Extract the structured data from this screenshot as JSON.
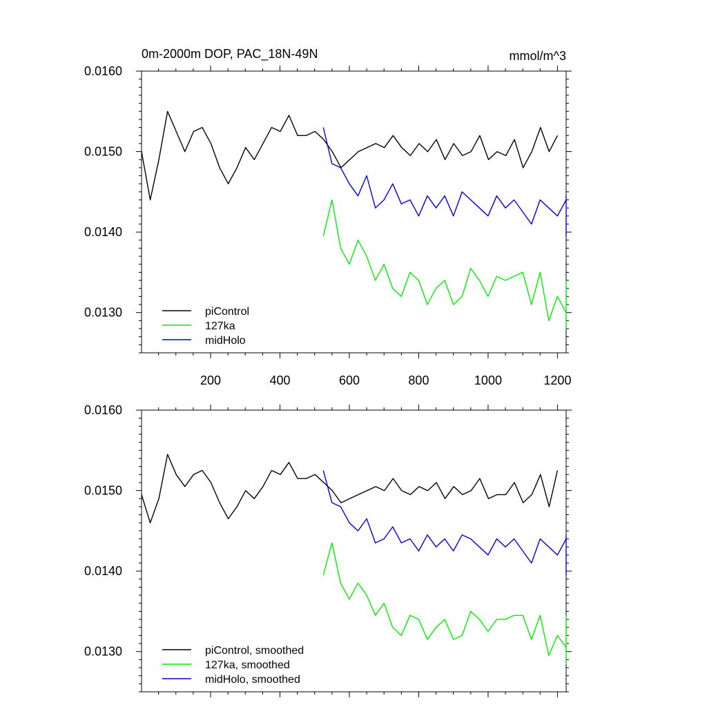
{
  "chart_data": [
    {
      "type": "line",
      "title": "0m-2000m DOP, PAC_18N-49N",
      "units": "mmol/m^3",
      "xlim": [
        1,
        1225
      ],
      "ylim": [
        0.0125,
        0.016
      ],
      "xticks": [
        200,
        400,
        600,
        800,
        1000,
        1200
      ],
      "yticks": [
        "0.0160",
        "0.0150",
        "0.0140",
        "0.0130"
      ],
      "legend": [
        "piControl",
        "127ka",
        "midHolo"
      ],
      "series": [
        {
          "name": "piControl",
          "color": "#000000",
          "x_start": 1,
          "x_end": 1200,
          "step": 25,
          "values": [
            0.015,
            0.0144,
            0.0149,
            0.0155,
            0.01525,
            0.015,
            0.01525,
            0.0153,
            0.0151,
            0.0148,
            0.0146,
            0.0148,
            0.01505,
            0.0149,
            0.0151,
            0.0153,
            0.01525,
            0.01545,
            0.0152,
            0.0152,
            0.01525,
            0.01515,
            0.015,
            0.0148,
            0.0149,
            0.015,
            0.01505,
            0.0151,
            0.01505,
            0.0152,
            0.01505,
            0.01495,
            0.0151,
            0.015,
            0.01515,
            0.0149,
            0.0151,
            0.01495,
            0.015,
            0.0152,
            0.0149,
            0.015,
            0.01495,
            0.01515,
            0.0148,
            0.015,
            0.0153,
            0.015,
            0.0152
          ]
        },
        {
          "name": "127ka",
          "color": "#00ee00",
          "x_start": 525,
          "x_end": 1225,
          "step": 25,
          "values": [
            0.01395,
            0.0144,
            0.0138,
            0.0136,
            0.0139,
            0.0137,
            0.0134,
            0.0136,
            0.0133,
            0.0132,
            0.0135,
            0.0134,
            0.0131,
            0.0133,
            0.0134,
            0.0131,
            0.0132,
            0.01355,
            0.0134,
            0.0132,
            0.01345,
            0.0134,
            0.01345,
            0.0135,
            0.0131,
            0.0135,
            0.0129,
            0.0132,
            0.013,
            0.0131,
            0.01315,
            0.0133,
            0.0131,
            0.01295,
            0.0128,
            0.0134
          ]
        },
        {
          "name": "midHolo",
          "color": "#0000dd",
          "x_start": 525,
          "x_end": 1225,
          "step": 25,
          "values": [
            0.0153,
            0.01485,
            0.0148,
            0.0146,
            0.01445,
            0.0147,
            0.0143,
            0.0144,
            0.0146,
            0.01435,
            0.0144,
            0.0142,
            0.01445,
            0.0143,
            0.01445,
            0.0142,
            0.0145,
            0.0144,
            0.0143,
            0.0142,
            0.01445,
            0.0143,
            0.0144,
            0.01425,
            0.0141,
            0.0144,
            0.0143,
            0.0142,
            0.0144,
            0.01445,
            0.01425,
            0.0143,
            0.0141,
            0.01395,
            0.0142,
            0.01395
          ]
        }
      ]
    },
    {
      "type": "line",
      "title": "",
      "units": "",
      "xlim": [
        1,
        1225
      ],
      "ylim": [
        0.0125,
        0.016
      ],
      "xticks": [
        200,
        400,
        600,
        800,
        1000,
        1200
      ],
      "yticks": [
        "0.0160",
        "0.0150",
        "0.0140",
        "0.0130"
      ],
      "legend": [
        "piControl, smoothed",
        "127ka, smoothed",
        "midHolo, smoothed"
      ],
      "series": [
        {
          "name": "piControl, smoothed",
          "color": "#000000",
          "x_start": 1,
          "x_end": 1200,
          "step": 25,
          "values": [
            0.01495,
            0.0146,
            0.0149,
            0.01545,
            0.0152,
            0.01505,
            0.0152,
            0.01525,
            0.0151,
            0.01485,
            0.01465,
            0.0148,
            0.015,
            0.0149,
            0.01505,
            0.01525,
            0.0152,
            0.01535,
            0.01515,
            0.01515,
            0.0152,
            0.0151,
            0.015,
            0.01485,
            0.0149,
            0.01495,
            0.015,
            0.01505,
            0.015,
            0.01515,
            0.015,
            0.01495,
            0.01505,
            0.015,
            0.0151,
            0.0149,
            0.01505,
            0.01495,
            0.015,
            0.01515,
            0.0149,
            0.01495,
            0.01495,
            0.0151,
            0.01485,
            0.01495,
            0.0152,
            0.0148,
            0.01525
          ]
        },
        {
          "name": "127ka, smoothed",
          "color": "#00ee00",
          "x_start": 525,
          "x_end": 1225,
          "step": 25,
          "values": [
            0.01395,
            0.01435,
            0.01385,
            0.01365,
            0.01385,
            0.0137,
            0.01345,
            0.0136,
            0.0133,
            0.0132,
            0.01345,
            0.0134,
            0.01315,
            0.0133,
            0.0134,
            0.01315,
            0.0132,
            0.0135,
            0.0134,
            0.01325,
            0.0134,
            0.0134,
            0.01345,
            0.01345,
            0.01315,
            0.01345,
            0.01295,
            0.0132,
            0.01305,
            0.0131,
            0.01315,
            0.01325,
            0.0131,
            0.013,
            0.01285,
            0.01345
          ]
        },
        {
          "name": "midHolo, smoothed",
          "color": "#0000dd",
          "x_start": 525,
          "x_end": 1225,
          "step": 25,
          "values": [
            0.01525,
            0.01485,
            0.0148,
            0.0146,
            0.0145,
            0.01465,
            0.01435,
            0.0144,
            0.01455,
            0.01435,
            0.0144,
            0.01425,
            0.01445,
            0.0143,
            0.0144,
            0.01425,
            0.01445,
            0.0144,
            0.0143,
            0.0142,
            0.0144,
            0.0143,
            0.0144,
            0.01425,
            0.0141,
            0.0144,
            0.0143,
            0.0142,
            0.0144,
            0.01445,
            0.01425,
            0.0143,
            0.0141,
            0.01395,
            0.0142,
            0.01395
          ]
        }
      ]
    }
  ]
}
